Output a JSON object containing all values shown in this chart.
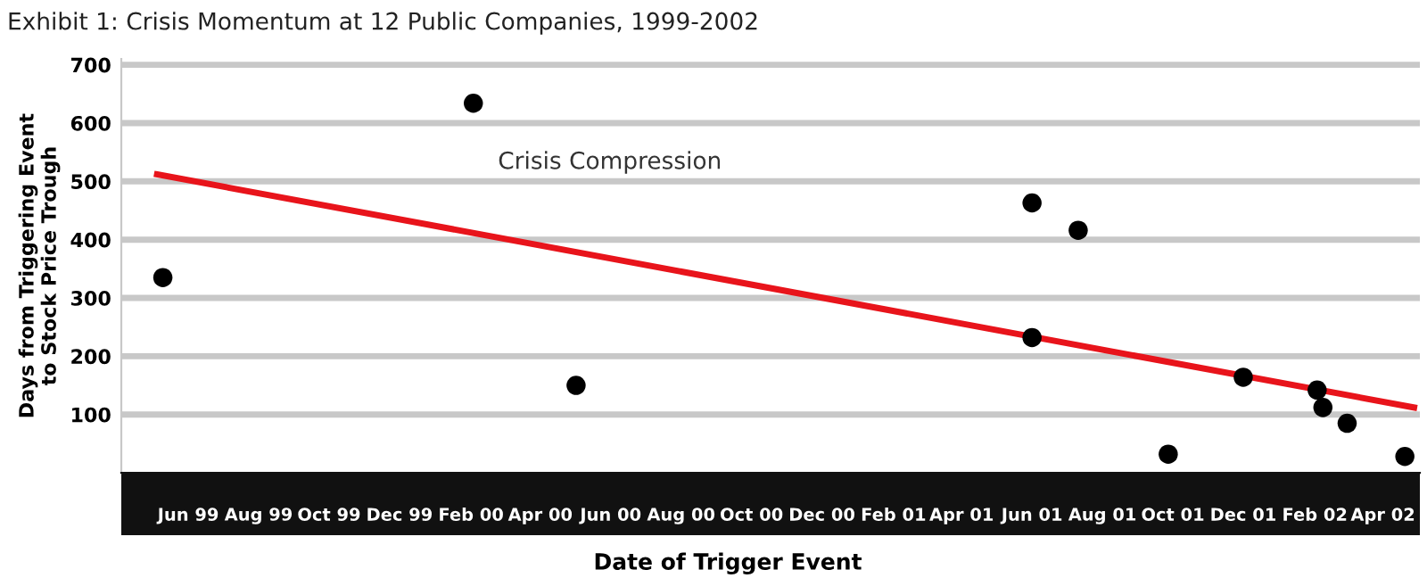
{
  "chart_data": {
    "type": "scatter",
    "title": "Exhibit 1: Crisis Momentum at 12 Public Companies, 1999-2002",
    "xlabel": "Date of Trigger Event",
    "ylabel": "Days from Triggering Event\nto Stock Price Trough",
    "series": [
      {
        "type": "scatter",
        "color": "#000000",
        "marker": "circle",
        "x": [
          "1999-05-10",
          "2000-02-03",
          "2000-05-02",
          "2001-06-01",
          "2001-07-11",
          "2001-06-01",
          "2001-09-27",
          "2001-12-01",
          "2002-02-03",
          "2002-02-08",
          "2002-03-01",
          "2002-04-20"
        ],
        "values": [
          335,
          634,
          150,
          463,
          416,
          232,
          32,
          164,
          142,
          112,
          85,
          28
        ]
      },
      {
        "type": "line",
        "color": "#e8141b",
        "marker": "none",
        "line_style": "solid",
        "x": [
          "1999-05-05",
          "2002-04-28"
        ],
        "values": [
          512,
          112
        ]
      }
    ],
    "annotations": [
      "Crisis Compression"
    ],
    "xlim": [
      "1999-04-04",
      "2002-05-03"
    ],
    "xticks": [
      {
        "value": "1999-06-01",
        "label": "Jun 99"
      },
      {
        "value": "1999-08-01",
        "label": "Aug 99"
      },
      {
        "value": "1999-10-01",
        "label": "Oct 99"
      },
      {
        "value": "1999-12-01",
        "label": "Dec 99"
      },
      {
        "value": "2000-02-01",
        "label": "Feb 00"
      },
      {
        "value": "2000-04-01",
        "label": "Apr 00"
      },
      {
        "value": "2000-06-01",
        "label": "Jun 00"
      },
      {
        "value": "2000-08-01",
        "label": "Aug 00"
      },
      {
        "value": "2000-10-01",
        "label": "Oct 00"
      },
      {
        "value": "2000-12-01",
        "label": "Dec 00"
      },
      {
        "value": "2001-02-01",
        "label": "Feb 01"
      },
      {
        "value": "2001-04-01",
        "label": "Apr 01"
      },
      {
        "value": "2001-06-01",
        "label": "Jun 01"
      },
      {
        "value": "2001-08-01",
        "label": "Aug 01"
      },
      {
        "value": "2001-10-01",
        "label": "Oct 01"
      },
      {
        "value": "2001-12-01",
        "label": "Dec 01"
      },
      {
        "value": "2002-02-01",
        "label": "Feb 02"
      },
      {
        "value": "2002-04-01",
        "label": "Apr 02"
      }
    ],
    "ylim": [
      0,
      710
    ],
    "yticks": [
      100,
      200,
      300,
      400,
      500,
      600,
      700
    ],
    "grid": "y",
    "legend": false
  }
}
